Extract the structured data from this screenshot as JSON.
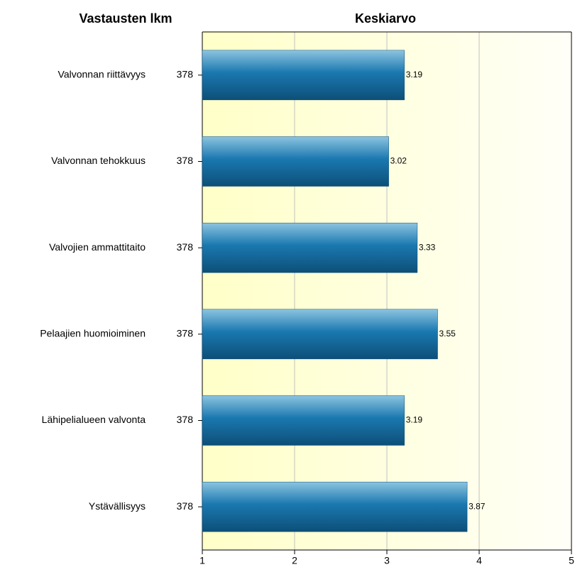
{
  "chart_data": {
    "type": "bar",
    "orientation": "horizontal",
    "count_title": "Vastausten lkm",
    "title": "Keskiarvo",
    "categories": [
      "Valvonnan riittävyys",
      "Valvonnan tehokkuus",
      "Valvojien ammattitaito",
      "Pelaajien huomioiminen",
      "Lähipelialueen valvonta",
      "Ystävällisyys"
    ],
    "counts": [
      378,
      378,
      378,
      378,
      378,
      378
    ],
    "values": [
      3.19,
      3.02,
      3.33,
      3.55,
      3.19,
      3.87
    ],
    "color": "#1a78b0",
    "xlim": [
      1,
      5
    ],
    "xticks": [
      1,
      2,
      3,
      4,
      5
    ],
    "grid": true
  }
}
